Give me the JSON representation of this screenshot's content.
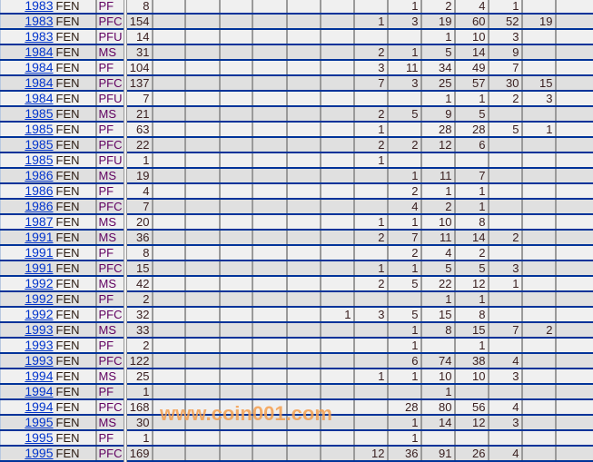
{
  "colors": {
    "row_border": "#003399",
    "link": "#0033cc",
    "grade": "#600060",
    "watermark": "#f5a050"
  },
  "watermark": "www.coin001.com",
  "rows": [
    {
      "year": "1983",
      "mint": "FEN",
      "grade": "PF",
      "total": "8",
      "counts": [
        "",
        "",
        "",
        "",
        "",
        "",
        "",
        "1",
        "2",
        "4",
        "1",
        "",
        ""
      ]
    },
    {
      "year": "1983",
      "mint": "FEN",
      "grade": "PFC",
      "total": "154",
      "counts": [
        "",
        "",
        "",
        "",
        "",
        "",
        "1",
        "3",
        "19",
        "60",
        "52",
        "19",
        ""
      ]
    },
    {
      "year": "1983",
      "mint": "FEN",
      "grade": "PFU",
      "total": "14",
      "counts": [
        "",
        "",
        "",
        "",
        "",
        "",
        "",
        "",
        "1",
        "10",
        "3",
        "",
        ""
      ]
    },
    {
      "year": "1984",
      "mint": "FEN",
      "grade": "MS",
      "total": "31",
      "counts": [
        "",
        "",
        "",
        "",
        "",
        "",
        "2",
        "1",
        "5",
        "14",
        "9",
        "",
        ""
      ]
    },
    {
      "year": "1984",
      "mint": "FEN",
      "grade": "PF",
      "total": "104",
      "counts": [
        "",
        "",
        "",
        "",
        "",
        "",
        "3",
        "11",
        "34",
        "49",
        "7",
        "",
        ""
      ]
    },
    {
      "year": "1984",
      "mint": "FEN",
      "grade": "PFC",
      "total": "137",
      "counts": [
        "",
        "",
        "",
        "",
        "",
        "",
        "7",
        "3",
        "25",
        "57",
        "30",
        "15",
        ""
      ]
    },
    {
      "year": "1984",
      "mint": "FEN",
      "grade": "PFU",
      "total": "7",
      "counts": [
        "",
        "",
        "",
        "",
        "",
        "",
        "",
        "",
        "1",
        "1",
        "2",
        "3",
        ""
      ]
    },
    {
      "year": "1985",
      "mint": "FEN",
      "grade": "MS",
      "total": "21",
      "counts": [
        "",
        "",
        "",
        "",
        "",
        "",
        "2",
        "5",
        "9",
        "5",
        "",
        "",
        ""
      ]
    },
    {
      "year": "1985",
      "mint": "FEN",
      "grade": "PF",
      "total": "63",
      "counts": [
        "",
        "",
        "",
        "",
        "",
        "",
        "1",
        "",
        "28",
        "28",
        "5",
        "1",
        ""
      ]
    },
    {
      "year": "1985",
      "mint": "FEN",
      "grade": "PFC",
      "total": "22",
      "counts": [
        "",
        "",
        "",
        "",
        "",
        "",
        "2",
        "2",
        "12",
        "6",
        "",
        "",
        ""
      ]
    },
    {
      "year": "1985",
      "mint": "FEN",
      "grade": "PFU",
      "total": "1",
      "counts": [
        "",
        "",
        "",
        "",
        "",
        "",
        "1",
        "",
        "",
        "",
        "",
        "",
        ""
      ]
    },
    {
      "year": "1986",
      "mint": "FEN",
      "grade": "MS",
      "total": "19",
      "counts": [
        "",
        "",
        "",
        "",
        "",
        "",
        "",
        "1",
        "11",
        "7",
        "",
        "",
        ""
      ]
    },
    {
      "year": "1986",
      "mint": "FEN",
      "grade": "PF",
      "total": "4",
      "counts": [
        "",
        "",
        "",
        "",
        "",
        "",
        "",
        "2",
        "1",
        "1",
        "",
        "",
        ""
      ]
    },
    {
      "year": "1986",
      "mint": "FEN",
      "grade": "PFC",
      "total": "7",
      "counts": [
        "",
        "",
        "",
        "",
        "",
        "",
        "",
        "4",
        "2",
        "1",
        "",
        "",
        ""
      ]
    },
    {
      "year": "1987",
      "mint": "FEN",
      "grade": "MS",
      "total": "20",
      "counts": [
        "",
        "",
        "",
        "",
        "",
        "",
        "1",
        "1",
        "10",
        "8",
        "",
        "",
        ""
      ]
    },
    {
      "year": "1991",
      "mint": "FEN",
      "grade": "MS",
      "total": "36",
      "counts": [
        "",
        "",
        "",
        "",
        "",
        "",
        "2",
        "7",
        "11",
        "14",
        "2",
        "",
        ""
      ]
    },
    {
      "year": "1991",
      "mint": "FEN",
      "grade": "PF",
      "total": "8",
      "counts": [
        "",
        "",
        "",
        "",
        "",
        "",
        "",
        "2",
        "4",
        "2",
        "",
        "",
        ""
      ]
    },
    {
      "year": "1991",
      "mint": "FEN",
      "grade": "PFC",
      "total": "15",
      "counts": [
        "",
        "",
        "",
        "",
        "",
        "",
        "1",
        "1",
        "5",
        "5",
        "3",
        "",
        ""
      ]
    },
    {
      "year": "1992",
      "mint": "FEN",
      "grade": "MS",
      "total": "42",
      "counts": [
        "",
        "",
        "",
        "",
        "",
        "",
        "2",
        "5",
        "22",
        "12",
        "1",
        "",
        ""
      ]
    },
    {
      "year": "1992",
      "mint": "FEN",
      "grade": "PF",
      "total": "2",
      "counts": [
        "",
        "",
        "",
        "",
        "",
        "",
        "",
        "",
        "1",
        "1",
        "",
        "",
        ""
      ]
    },
    {
      "year": "1992",
      "mint": "FEN",
      "grade": "PFC",
      "total": "32",
      "counts": [
        "",
        "",
        "",
        "",
        "",
        "1",
        "3",
        "5",
        "15",
        "8",
        "",
        "",
        ""
      ]
    },
    {
      "year": "1993",
      "mint": "FEN",
      "grade": "MS",
      "total": "33",
      "counts": [
        "",
        "",
        "",
        "",
        "",
        "",
        "",
        "1",
        "8",
        "15",
        "7",
        "2",
        ""
      ]
    },
    {
      "year": "1993",
      "mint": "FEN",
      "grade": "PF",
      "total": "2",
      "counts": [
        "",
        "",
        "",
        "",
        "",
        "",
        "",
        "1",
        "",
        "1",
        "",
        "",
        ""
      ]
    },
    {
      "year": "1993",
      "mint": "FEN",
      "grade": "PFC",
      "total": "122",
      "counts": [
        "",
        "",
        "",
        "",
        "",
        "",
        "",
        "6",
        "74",
        "38",
        "4",
        "",
        ""
      ]
    },
    {
      "year": "1994",
      "mint": "FEN",
      "grade": "MS",
      "total": "25",
      "counts": [
        "",
        "",
        "",
        "",
        "",
        "",
        "1",
        "1",
        "10",
        "10",
        "3",
        "",
        ""
      ]
    },
    {
      "year": "1994",
      "mint": "FEN",
      "grade": "PF",
      "total": "1",
      "counts": [
        "",
        "",
        "",
        "",
        "",
        "",
        "",
        "",
        "1",
        "",
        "",
        "",
        ""
      ]
    },
    {
      "year": "1994",
      "mint": "FEN",
      "grade": "PFC",
      "total": "168",
      "counts": [
        "",
        "",
        "",
        "",
        "",
        "",
        "",
        "28",
        "80",
        "56",
        "4",
        "",
        ""
      ]
    },
    {
      "year": "1995",
      "mint": "FEN",
      "grade": "MS",
      "total": "30",
      "counts": [
        "",
        "",
        "",
        "",
        "",
        "",
        "",
        "1",
        "14",
        "12",
        "3",
        "",
        ""
      ]
    },
    {
      "year": "1995",
      "mint": "FEN",
      "grade": "PF",
      "total": "1",
      "counts": [
        "",
        "",
        "",
        "",
        "",
        "",
        "",
        "1",
        "",
        "",
        "",
        "",
        ""
      ]
    },
    {
      "year": "1995",
      "mint": "FEN",
      "grade": "PFC",
      "total": "169",
      "counts": [
        "",
        "",
        "",
        "",
        "",
        "",
        "12",
        "36",
        "91",
        "26",
        "4",
        "",
        ""
      ]
    }
  ]
}
